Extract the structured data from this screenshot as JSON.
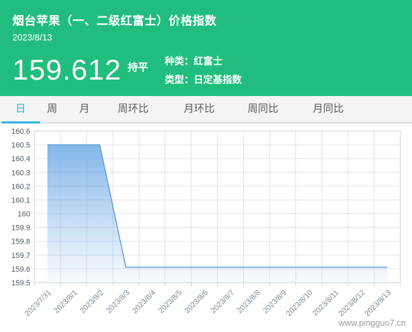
{
  "header": {
    "title": "烟台苹果（一、二级红富士）价格指数",
    "date": "2023/8/13",
    "index_value": "159.612",
    "trend_label": "持平",
    "meta": [
      {
        "label": "种类：红富士"
      },
      {
        "label": "类型：日定基指数"
      }
    ],
    "bg_color": "#21bd7e"
  },
  "tabs": {
    "active_color": "#33b0dd",
    "items": [
      {
        "label": "日",
        "active": true
      },
      {
        "label": "周",
        "active": false
      },
      {
        "label": "月",
        "active": false
      },
      {
        "label": "周环比",
        "active": false
      },
      {
        "label": "月环比",
        "active": false
      },
      {
        "label": "周同比",
        "active": false
      },
      {
        "label": "月同比",
        "active": false
      }
    ]
  },
  "chart_data": {
    "type": "area",
    "title": "",
    "xlabel": "",
    "ylabel": "",
    "grid": true,
    "legend_position": "none",
    "categories": [
      "2023/7/31",
      "2023/8/1",
      "2023/8/2",
      "2023/8/3",
      "2023/8/4",
      "2023/8/5",
      "2023/8/6",
      "2023/8/7",
      "2023/8/8",
      "2023/8/9",
      "2023/8/10",
      "2023/8/11",
      "2023/8/12",
      "2023/8/13"
    ],
    "values": [
      160.5,
      160.5,
      160.5,
      159.612,
      159.612,
      159.612,
      159.612,
      159.612,
      159.612,
      159.612,
      159.612,
      159.612,
      159.612,
      159.612
    ],
    "ylim": [
      159.5,
      160.6
    ],
    "y_interval": 0.1,
    "line_color": "#5f9fd8",
    "fill_top_color": "rgba(126,179,232,0.95)",
    "fill_bottom_color": "rgba(126,179,232,0.04)",
    "grid_color": "#e0e3e7",
    "axis_color": "#c9d1d9",
    "y_label_color": "#4b5563",
    "x_label_color": "#7d8b97"
  },
  "watermark": "www.pingguo7.cn"
}
